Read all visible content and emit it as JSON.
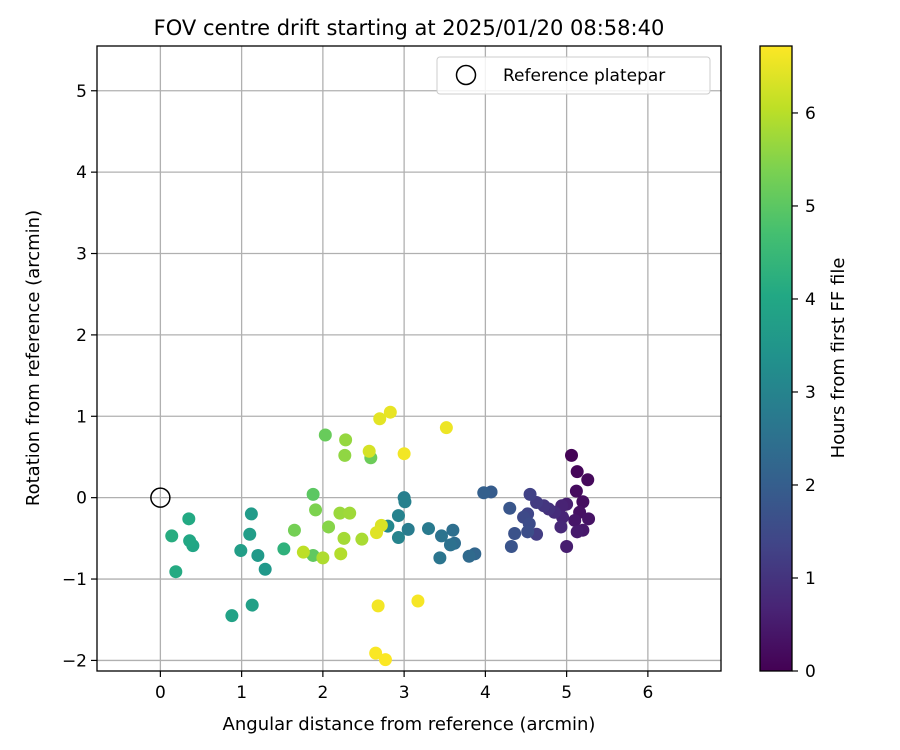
{
  "chart_data": {
    "type": "scatter",
    "title": "FOV centre drift starting at 2025/01/20 08:58:40",
    "xlabel": "Angular distance from reference (arcmin)",
    "ylabel": "Rotation from reference (arcmin)",
    "xlim": [
      -0.78,
      6.9
    ],
    "ylim": [
      -2.13,
      5.55
    ],
    "x_ticks": [
      0,
      1,
      2,
      3,
      4,
      5,
      6
    ],
    "y_ticks": [
      -2,
      -1,
      0,
      1,
      2,
      3,
      4,
      5
    ],
    "grid": true,
    "legend": {
      "position": "upper-right",
      "entries": [
        "Reference platepar"
      ]
    },
    "reference_point": {
      "x": 0,
      "y": 0,
      "marker": "open-circle"
    },
    "colorbar": {
      "label": "Hours from first FF file",
      "colormap": "viridis",
      "range": [
        0,
        6.72
      ],
      "ticks": [
        0,
        1,
        2,
        3,
        4,
        5,
        6
      ]
    },
    "points": [
      [
        5.06,
        0.52,
        0.05
      ],
      [
        5.13,
        0.32,
        0.1
      ],
      [
        5.26,
        0.22,
        0.15
      ],
      [
        5.12,
        0.08,
        0.2
      ],
      [
        5.2,
        -0.05,
        0.25
      ],
      [
        5.16,
        -0.18,
        0.3
      ],
      [
        5.27,
        -0.26,
        0.35
      ],
      [
        5.1,
        -0.28,
        0.4
      ],
      [
        5.2,
        -0.4,
        0.45
      ],
      [
        5.13,
        -0.42,
        0.5
      ],
      [
        5.0,
        -0.6,
        0.55
      ],
      [
        5.0,
        -0.08,
        0.6
      ],
      [
        4.94,
        -0.1,
        0.65
      ],
      [
        4.95,
        -0.24,
        0.7
      ],
      [
        4.93,
        -0.36,
        0.75
      ],
      [
        4.85,
        -0.18,
        0.85
      ],
      [
        4.78,
        -0.14,
        0.95
      ],
      [
        4.72,
        -0.1,
        1.05
      ],
      [
        4.63,
        -0.06,
        1.15
      ],
      [
        4.63,
        -0.45,
        1.2
      ],
      [
        4.55,
        0.04,
        1.3
      ],
      [
        4.52,
        -0.2,
        1.4
      ],
      [
        4.47,
        -0.24,
        1.5
      ],
      [
        4.54,
        -0.32,
        1.55
      ],
      [
        4.52,
        -0.42,
        1.6
      ],
      [
        4.36,
        -0.44,
        1.7
      ],
      [
        4.32,
        -0.6,
        1.75
      ],
      [
        4.3,
        -0.13,
        1.8
      ],
      [
        4.07,
        0.07,
        1.95
      ],
      [
        3.98,
        0.06,
        2.05
      ],
      [
        3.87,
        -0.69,
        2.2
      ],
      [
        3.8,
        -0.72,
        2.3
      ],
      [
        3.62,
        -0.56,
        2.4
      ],
      [
        3.6,
        -0.4,
        2.45
      ],
      [
        3.57,
        -0.58,
        2.5
      ],
      [
        3.46,
        -0.47,
        2.55
      ],
      [
        3.44,
        -0.74,
        2.6
      ],
      [
        3.3,
        -0.38,
        2.75
      ],
      [
        3.05,
        -0.39,
        2.8
      ],
      [
        3.0,
        0.0,
        2.85
      ],
      [
        3.01,
        -0.05,
        2.9
      ],
      [
        2.93,
        -0.22,
        2.95
      ],
      [
        2.93,
        -0.49,
        3.0
      ],
      [
        2.8,
        -0.35,
        3.1
      ],
      [
        1.29,
        -0.88,
        3.55
      ],
      [
        1.2,
        -0.71,
        3.6
      ],
      [
        1.12,
        -0.2,
        3.65
      ],
      [
        1.1,
        -0.45,
        3.7
      ],
      [
        0.99,
        -0.65,
        3.75
      ],
      [
        1.13,
        -1.32,
        3.8
      ],
      [
        0.88,
        -1.45,
        3.85
      ],
      [
        0.4,
        -0.59,
        3.95
      ],
      [
        0.36,
        -0.53,
        4.0
      ],
      [
        0.35,
        -0.26,
        4.05
      ],
      [
        0.19,
        -0.91,
        4.1
      ],
      [
        0.14,
        -0.47,
        4.15
      ],
      [
        1.52,
        -0.63,
        4.3
      ],
      [
        1.88,
        0.04,
        5.0
      ],
      [
        1.88,
        -0.71,
        5.05
      ],
      [
        2.03,
        0.77,
        5.15
      ],
      [
        2.59,
        0.49,
        5.2
      ],
      [
        1.65,
        -0.4,
        5.3
      ],
      [
        1.91,
        -0.15,
        5.4
      ],
      [
        2.07,
        -0.36,
        5.5
      ],
      [
        2.27,
        0.52,
        5.6
      ],
      [
        2.28,
        0.71,
        5.65
      ],
      [
        2.21,
        -0.19,
        5.7
      ],
      [
        2.33,
        -0.19,
        5.75
      ],
      [
        2.26,
        -0.5,
        5.8
      ],
      [
        2.48,
        -0.51,
        5.85
      ],
      [
        2.0,
        -0.74,
        5.9
      ],
      [
        2.22,
        -0.69,
        5.95
      ],
      [
        1.76,
        -0.67,
        6.05
      ],
      [
        2.57,
        0.57,
        6.3
      ],
      [
        2.72,
        -0.34,
        6.35
      ],
      [
        2.66,
        -0.43,
        6.4
      ],
      [
        2.7,
        0.97,
        6.45
      ],
      [
        2.83,
        1.05,
        6.5
      ],
      [
        3.52,
        0.86,
        6.55
      ],
      [
        3.0,
        0.54,
        6.6
      ],
      [
        2.68,
        -1.33,
        6.62
      ],
      [
        3.17,
        -1.27,
        6.65
      ],
      [
        2.65,
        -1.91,
        6.68
      ],
      [
        2.77,
        -1.99,
        6.7
      ]
    ]
  }
}
